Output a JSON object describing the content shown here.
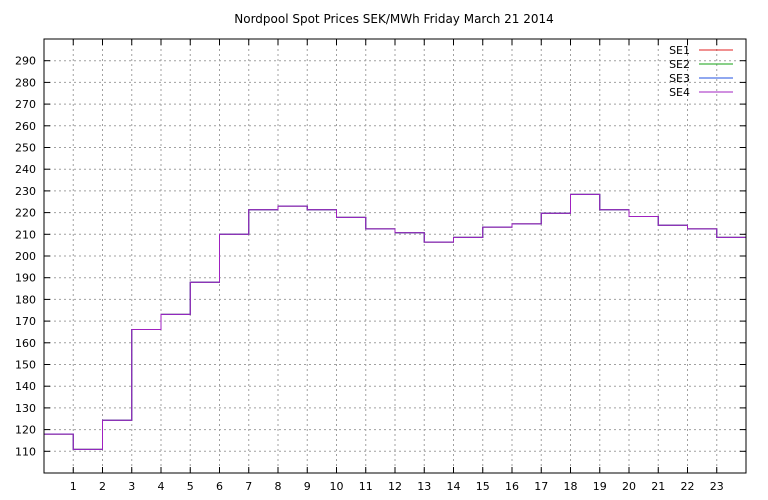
{
  "chart_data": {
    "type": "line",
    "step": true,
    "title": "Nordpool Spot Prices SEK/MWh Friday March 21 2014",
    "xlabel": "",
    "ylabel": "",
    "xlim": [
      0,
      24
    ],
    "ylim": [
      100,
      300
    ],
    "x_ticks": [
      1,
      2,
      3,
      4,
      5,
      6,
      7,
      8,
      9,
      10,
      11,
      12,
      13,
      14,
      15,
      16,
      17,
      18,
      19,
      20,
      21,
      22,
      23
    ],
    "y_ticks": [
      110,
      120,
      130,
      140,
      150,
      160,
      170,
      180,
      190,
      200,
      210,
      220,
      230,
      240,
      250,
      260,
      270,
      280,
      290
    ],
    "grid": true,
    "legend_position": "top-right",
    "hours": [
      0,
      1,
      2,
      3,
      4,
      5,
      6,
      7,
      8,
      9,
      10,
      11,
      12,
      13,
      14,
      15,
      16,
      17,
      18,
      19,
      20,
      21,
      22,
      23
    ],
    "series": [
      {
        "name": "SE1",
        "color": "#e02020",
        "values": [
          117.9,
          110.9,
          124.3,
          166.1,
          173.1,
          187.9,
          210.0,
          221.3,
          223.0,
          221.3,
          217.8,
          212.5,
          210.7,
          206.4,
          208.6,
          213.3,
          214.8,
          219.7,
          228.4,
          221.3,
          218.2,
          214.2,
          212.5,
          208.6
        ]
      },
      {
        "name": "SE2",
        "color": "#10a010",
        "values": [
          117.9,
          110.9,
          124.3,
          166.1,
          173.1,
          187.9,
          210.0,
          221.3,
          223.0,
          221.3,
          217.8,
          212.5,
          210.7,
          206.4,
          208.6,
          213.3,
          214.8,
          219.7,
          228.4,
          221.3,
          218.2,
          214.2,
          212.5,
          208.6
        ]
      },
      {
        "name": "SE3",
        "color": "#2050e0",
        "values": [
          117.9,
          110.9,
          124.3,
          166.1,
          173.1,
          187.9,
          210.0,
          221.3,
          223.0,
          221.3,
          217.8,
          212.5,
          210.7,
          206.4,
          208.6,
          213.3,
          214.8,
          219.7,
          228.4,
          221.3,
          218.2,
          214.2,
          212.5,
          208.6
        ]
      },
      {
        "name": "SE4",
        "color": "#a020c0",
        "values": [
          117.9,
          110.9,
          124.3,
          166.1,
          173.1,
          187.9,
          210.0,
          221.3,
          223.0,
          221.3,
          217.8,
          212.5,
          210.7,
          206.4,
          208.6,
          213.3,
          214.8,
          219.7,
          228.4,
          221.3,
          218.2,
          214.2,
          212.5,
          208.6
        ]
      }
    ]
  }
}
